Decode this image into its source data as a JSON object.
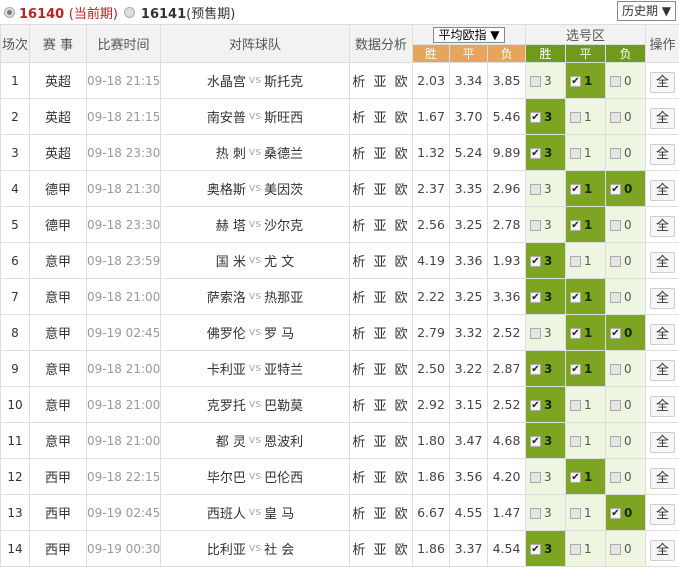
{
  "period": {
    "current_num": "16140",
    "current_suffix": "(当前期)",
    "next_num": "16141",
    "next_suffix": "(预售期)",
    "history": "历史期 ▼"
  },
  "headers": {
    "no": "场次",
    "league": "赛 事",
    "time": "比赛时间",
    "teams": "对阵球队",
    "analysis": "数据分析",
    "odds_select": "平均欧指 ▼",
    "win": "胜",
    "draw": "平",
    "lose": "负",
    "pick_zone": "选号区",
    "op": "操作"
  },
  "colors": {
    "odds_header": "#e5a55b",
    "pick_header": "#6f9a1c",
    "selected": "#7ea521",
    "unselected": "#eef6e1"
  },
  "rows": [
    {
      "no": "1",
      "league": "英超",
      "time": "09-18 21:15",
      "home": "水晶宫",
      "vs": "vs",
      "away": "斯托克",
      "analysis": "析 亚 欧",
      "w": "2.03",
      "d": "3.34",
      "l": "3.85",
      "picks": [
        false,
        true,
        false
      ],
      "op": "全"
    },
    {
      "no": "2",
      "league": "英超",
      "time": "09-18 21:15",
      "home": "南安普",
      "vs": "vs",
      "away": "斯旺西",
      "analysis": "析 亚 欧",
      "w": "1.67",
      "d": "3.70",
      "l": "5.46",
      "picks": [
        true,
        false,
        false
      ],
      "op": "全"
    },
    {
      "no": "3",
      "league": "英超",
      "time": "09-18 23:30",
      "home": "热 刺",
      "vs": "vs",
      "away": "桑德兰",
      "analysis": "析 亚 欧",
      "w": "1.32",
      "d": "5.24",
      "l": "9.89",
      "picks": [
        true,
        false,
        false
      ],
      "op": "全"
    },
    {
      "no": "4",
      "league": "德甲",
      "time": "09-18 21:30",
      "home": "奥格斯",
      "vs": "vs",
      "away": "美因茨",
      "analysis": "析 亚 欧",
      "w": "2.37",
      "d": "3.35",
      "l": "2.96",
      "picks": [
        false,
        true,
        true
      ],
      "op": "全"
    },
    {
      "no": "5",
      "league": "德甲",
      "time": "09-18 23:30",
      "home": "赫 塔",
      "vs": "vs",
      "away": "沙尔克",
      "analysis": "析 亚 欧",
      "w": "2.56",
      "d": "3.25",
      "l": "2.78",
      "picks": [
        false,
        true,
        false
      ],
      "op": "全"
    },
    {
      "no": "6",
      "league": "意甲",
      "time": "09-18 23:59",
      "home": "国 米",
      "vs": "vs",
      "away": "尤 文",
      "analysis": "析 亚 欧",
      "w": "4.19",
      "d": "3.36",
      "l": "1.93",
      "picks": [
        true,
        false,
        false
      ],
      "op": "全"
    },
    {
      "no": "7",
      "league": "意甲",
      "time": "09-18 21:00",
      "home": "萨索洛",
      "vs": "vs",
      "away": "热那亚",
      "analysis": "析 亚 欧",
      "w": "2.22",
      "d": "3.25",
      "l": "3.36",
      "picks": [
        true,
        true,
        false
      ],
      "op": "全"
    },
    {
      "no": "8",
      "league": "意甲",
      "time": "09-19 02:45",
      "home": "佛罗伦",
      "vs": "vs",
      "away": "罗 马",
      "analysis": "析 亚 欧",
      "w": "2.79",
      "d": "3.32",
      "l": "2.52",
      "picks": [
        false,
        true,
        true
      ],
      "op": "全"
    },
    {
      "no": "9",
      "league": "意甲",
      "time": "09-18 21:00",
      "home": "卡利亚",
      "vs": "vs",
      "away": "亚特兰",
      "analysis": "析 亚 欧",
      "w": "2.50",
      "d": "3.22",
      "l": "2.87",
      "picks": [
        true,
        true,
        false
      ],
      "op": "全"
    },
    {
      "no": "10",
      "league": "意甲",
      "time": "09-18 21:00",
      "home": "克罗托",
      "vs": "vs",
      "away": "巴勒莫",
      "analysis": "析 亚 欧",
      "w": "2.92",
      "d": "3.15",
      "l": "2.52",
      "picks": [
        true,
        false,
        false
      ],
      "op": "全"
    },
    {
      "no": "11",
      "league": "意甲",
      "time": "09-18 21:00",
      "home": "都 灵",
      "vs": "vs",
      "away": "恩波利",
      "analysis": "析 亚 欧",
      "w": "1.80",
      "d": "3.47",
      "l": "4.68",
      "picks": [
        true,
        false,
        false
      ],
      "op": "全"
    },
    {
      "no": "12",
      "league": "西甲",
      "time": "09-18 22:15",
      "home": "毕尔巴",
      "vs": "vs",
      "away": "巴伦西",
      "analysis": "析 亚 欧",
      "w": "1.86",
      "d": "3.56",
      "l": "4.20",
      "picks": [
        false,
        true,
        false
      ],
      "op": "全"
    },
    {
      "no": "13",
      "league": "西甲",
      "time": "09-19 02:45",
      "home": "西班人",
      "vs": "vs",
      "away": "皇 马",
      "analysis": "析 亚 欧",
      "w": "6.67",
      "d": "4.55",
      "l": "1.47",
      "picks": [
        false,
        false,
        true
      ],
      "op": "全"
    },
    {
      "no": "14",
      "league": "西甲",
      "time": "09-19 00:30",
      "home": "比利亚",
      "vs": "vs",
      "away": "社 会",
      "analysis": "析 亚 欧",
      "w": "1.86",
      "d": "3.37",
      "l": "4.54",
      "picks": [
        true,
        false,
        false
      ],
      "op": "全"
    }
  ],
  "pick_values": [
    "3",
    "1",
    "0"
  ]
}
